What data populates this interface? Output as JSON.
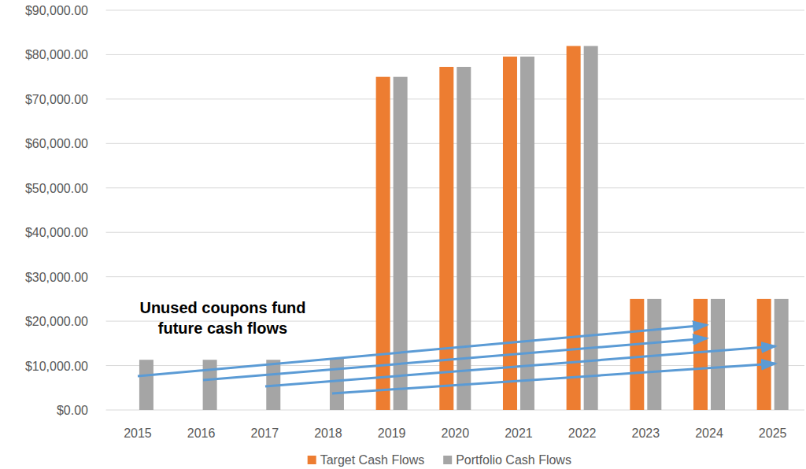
{
  "chart_data": {
    "type": "bar",
    "categories": [
      "2015",
      "2016",
      "2017",
      "2018",
      "2019",
      "2020",
      "2021",
      "2022",
      "2023",
      "2024",
      "2025"
    ],
    "series": [
      {
        "name": "Target Cash Flows",
        "color": "#ed7d31",
        "values": [
          0,
          0,
          0,
          0,
          75000,
          77250,
          79567,
          81954,
          25000,
          25000,
          25000
        ]
      },
      {
        "name": "Portfolio Cash Flows",
        "color": "#a5a5a5",
        "values": [
          11300,
          11300,
          11300,
          11600,
          75000,
          77250,
          79567,
          81954,
          25000,
          25000,
          25000
        ]
      }
    ],
    "ylim": [
      0,
      90000
    ],
    "yticks": [
      {
        "value": 0,
        "label": "$0.00"
      },
      {
        "value": 10000,
        "label": "$10,000.00"
      },
      {
        "value": 20000,
        "label": "$20,000.00"
      },
      {
        "value": 30000,
        "label": "$30,000.00"
      },
      {
        "value": 40000,
        "label": "$40,000.00"
      },
      {
        "value": 50000,
        "label": "$50,000.00"
      },
      {
        "value": 60000,
        "label": "$60,000.00"
      },
      {
        "value": 70000,
        "label": "$70,000.00"
      },
      {
        "value": 80000,
        "label": "$80,000.00"
      },
      {
        "value": 90000,
        "label": "$90,000.00"
      }
    ],
    "annotations": [
      "Unused coupons fund future cash flows"
    ],
    "grid": true,
    "legend": "bottom"
  }
}
